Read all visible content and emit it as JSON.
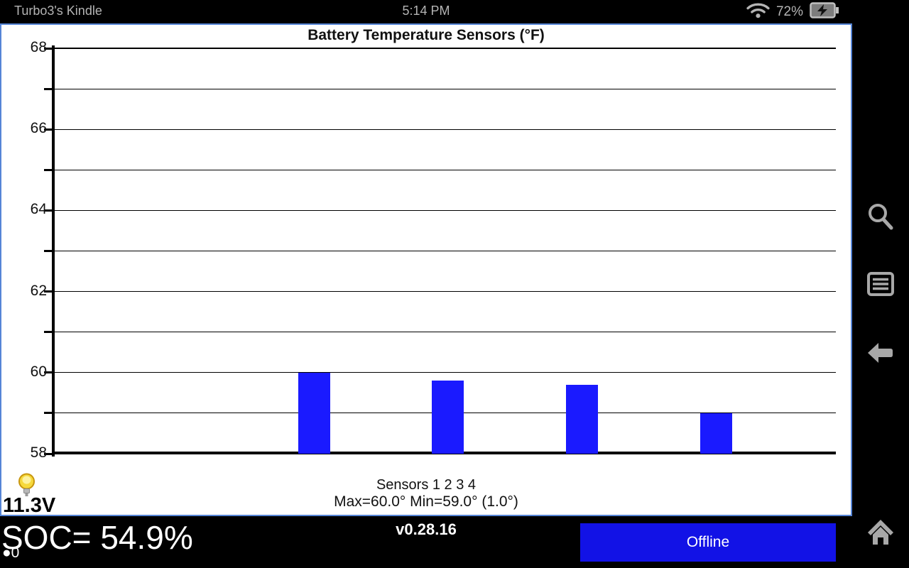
{
  "status_bar": {
    "device_name": "Turbo3's Kindle",
    "time": "5:14 PM",
    "battery_percent": "72%",
    "icons": [
      "wifi-icon",
      "battery-charging-icon"
    ]
  },
  "chart_data": {
    "type": "bar",
    "title": "Battery Temperature Sensors (°F)",
    "categories": [
      "Sensor 1",
      "Sensor 2",
      "Sensor 3",
      "Sensor 4"
    ],
    "values": [
      60.0,
      59.8,
      59.7,
      59.0
    ],
    "ylim": [
      58,
      68
    ],
    "yticks": [
      58,
      59,
      60,
      61,
      62,
      63,
      64,
      65,
      66,
      67,
      68
    ],
    "ytick_labels": [
      58,
      60,
      62,
      64,
      66,
      68
    ],
    "grid": true,
    "legend": "none",
    "bar_color": "#1a1aff",
    "xlabel_line1": "Sensors 1 2 3 4",
    "xlabel_line2": "Max=60.0°  Min=59.0° (1.0°)"
  },
  "footer": {
    "voltage": "11.3V",
    "soc": "SOC= 54.9%",
    "counter": "●0",
    "version": "v0.28.16",
    "offline_label": "Offline",
    "bulb_icon": "lightbulb-icon"
  },
  "sidebar": {
    "icons": [
      "search-icon",
      "list-icon",
      "back-arrow-icon",
      "home-icon"
    ]
  },
  "colors": {
    "panel_border": "#5585d6",
    "bar": "#1a1aff",
    "offline_button": "#1212e6",
    "sidebar_icon": "#a8a8a8",
    "status_text": "#b4b4b4"
  }
}
